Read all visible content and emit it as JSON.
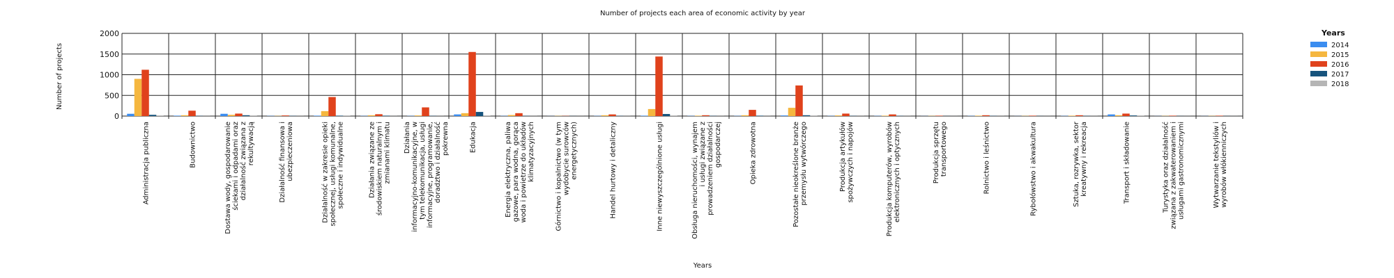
{
  "chart_data": {
    "type": "bar",
    "title": "Number of projects each area of economic activity by year",
    "xlabel": "Years",
    "ylabel": "Number of projects",
    "ylim": [
      0,
      2000
    ],
    "yticks": [
      0,
      500,
      1000,
      1500,
      2000
    ],
    "grid": true,
    "legend": {
      "title": "Years",
      "placement": "right"
    },
    "categories": [
      "Administracja publiczna",
      "Budownictwo",
      "Dostawa wody, gospodarowanie ściekami i odpadami oraz działalność związana z rekultywacją",
      "Działalność finansowa i ubezpieczeniowa",
      "Działalność w zakresie opieki społecznej, usługi komunalne, społeczne i indywidualne",
      "Działania związane ze środowiskiem naturalnym i zmianami klimatu",
      "Działania informacyjno-komunikacyjne, w tym telekomunikacja, usługi informacyjne, programowanie, doradztwo i działalność pokrewna",
      "Edukacja",
      "Energia elektryczna, paliwa gazowe, para wodna, gorąca woda i powietrze do układów klimatyzacyjnych",
      "Górnictwo i kopalnictwo (w tym wydobycie surowców energetycznych)",
      "Handel hurtowy i detaliczny",
      "Inne niewyszczególnione usługi",
      "Obsługa nieruchomości, wynajem i usługi związane z prowadzeniem działalności gospodarczej",
      "Opieka zdrowotna",
      "Pozostałe nieokreślone branże przemysłu wytwórczego",
      "Produkcja artykułów spożywczych i napojów",
      "Produkcja komputerów, wyrobów elektronicznych i optycznych",
      "Produkcja sprzętu transportowego",
      "Rolnictwo i leśnictwo",
      "Rybołówstwo i akwakultura",
      "Sztuka, rozrywka, sektor kreatywny i rekreacja",
      "Transport i składowanie",
      "Turystyka oraz działalność związana z zakwaterowaniem i usługami gastronomicznymi",
      "Wytwarzanie tekstyliów i wyrobów włókienniczych"
    ],
    "series": [
      {
        "name": "2014",
        "color": "#3b8df0",
        "values": [
          55,
          10,
          55,
          5,
          10,
          5,
          5,
          40,
          5,
          2,
          5,
          10,
          5,
          5,
          15,
          5,
          5,
          2,
          5,
          2,
          5,
          40,
          2,
          2
        ]
      },
      {
        "name": "2015",
        "color": "#f5b73f",
        "values": [
          900,
          20,
          30,
          5,
          120,
          20,
          15,
          70,
          25,
          5,
          20,
          170,
          10,
          20,
          200,
          15,
          10,
          5,
          10,
          5,
          10,
          20,
          5,
          5
        ]
      },
      {
        "name": "2016",
        "color": "#e0421c",
        "values": [
          1120,
          130,
          60,
          15,
          460,
          45,
          210,
          1550,
          70,
          5,
          40,
          1440,
          20,
          150,
          740,
          60,
          40,
          10,
          20,
          10,
          20,
          60,
          10,
          10
        ]
      },
      {
        "name": "2017",
        "color": "#17547d",
        "values": [
          30,
          5,
          20,
          5,
          10,
          10,
          5,
          100,
          5,
          2,
          5,
          50,
          5,
          10,
          20,
          5,
          5,
          2,
          5,
          2,
          5,
          15,
          2,
          2
        ]
      },
      {
        "name": "2018",
        "color": "#b5b5b5",
        "values": [
          5,
          2,
          5,
          2,
          5,
          2,
          2,
          5,
          2,
          1,
          2,
          5,
          2,
          2,
          5,
          2,
          2,
          1,
          2,
          1,
          2,
          5,
          1,
          1
        ]
      }
    ]
  }
}
